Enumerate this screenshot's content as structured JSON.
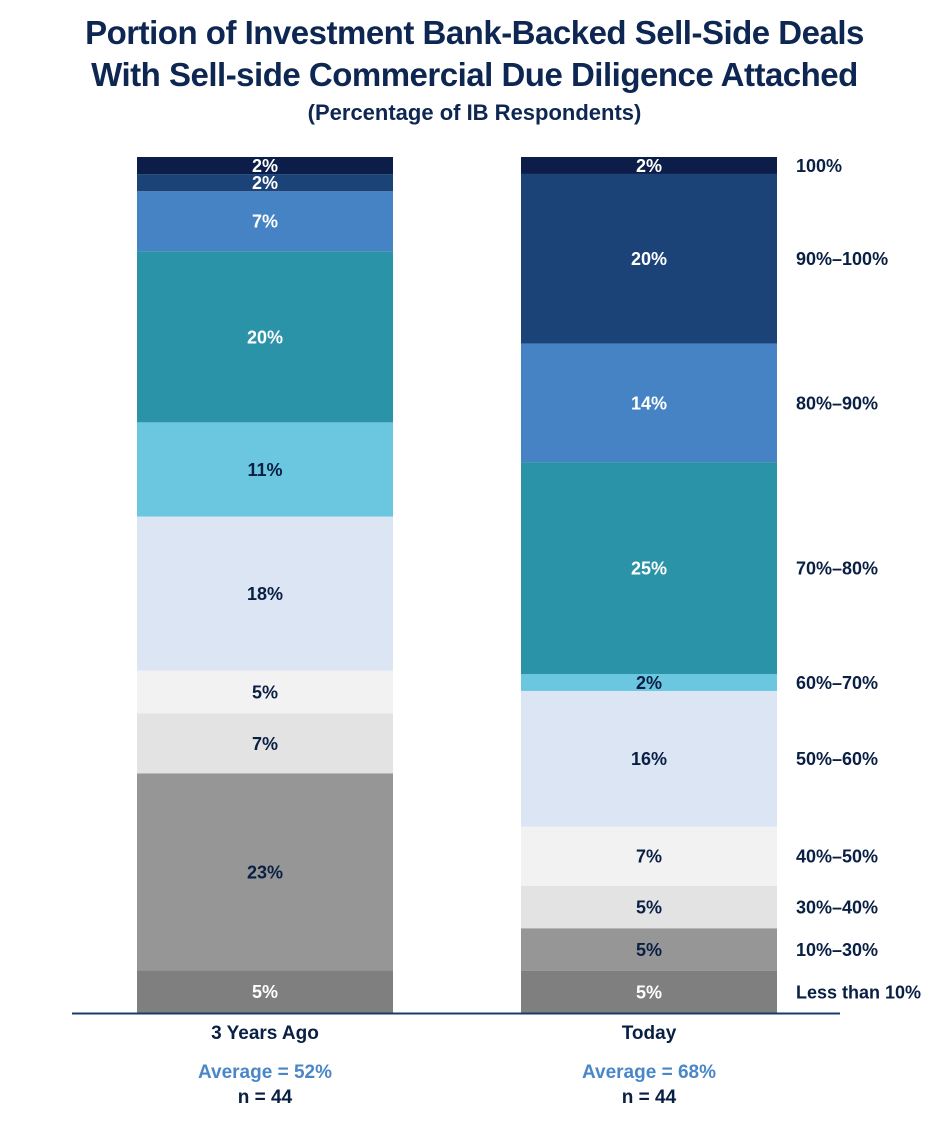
{
  "title": {
    "line1": "Portion of Investment Bank-Backed Sell-Side Deals",
    "line2": "With Sell-side Commercial Due Diligence Attached",
    "subtitle": "(Percentage of IB Respondents)"
  },
  "chart_data": {
    "type": "bar",
    "stacked": true,
    "title": "Portion of Investment Bank-Backed Sell-Side Deals With Sell-side Commercial Due Diligence Attached",
    "subtitle": "(Percentage of IB Respondents)",
    "categories": [
      "3 Years Ago",
      "Today"
    ],
    "legend_placement": "right",
    "grid": false,
    "series": [
      {
        "name": "Less than 10%",
        "color": "#7f7f7f",
        "label_color": "#ffffff",
        "values": [
          5,
          5
        ],
        "labels": [
          "5%",
          "5%"
        ]
      },
      {
        "name": "10%–30%",
        "color": "#969696",
        "label_color": "#0a1f44",
        "values": [
          23,
          5
        ],
        "labels": [
          "23%",
          "5%"
        ]
      },
      {
        "name": "30%–40%",
        "color": "#e3e3e3",
        "label_color": "#0a1f44",
        "values": [
          7,
          5
        ],
        "labels": [
          "7%",
          "5%"
        ]
      },
      {
        "name": "40%–50%",
        "color": "#f2f2f2",
        "label_color": "#0a1f44",
        "values": [
          5,
          7
        ],
        "labels": [
          "5%",
          "7%"
        ]
      },
      {
        "name": "50%–60%",
        "color": "#dbe5f3",
        "label_color": "#0a1f44",
        "values": [
          18,
          16
        ],
        "labels": [
          "18%",
          "16%"
        ]
      },
      {
        "name": "60%–70%",
        "color": "#6bc6e0",
        "label_color": "#0a1f44",
        "values": [
          11,
          2
        ],
        "labels": [
          "11%",
          "2%"
        ]
      },
      {
        "name": "70%–80%",
        "color": "#2b93a8",
        "label_color": "#ffffff",
        "values": [
          20,
          25
        ],
        "labels": [
          "20%",
          "25%"
        ]
      },
      {
        "name": "80%–90%",
        "color": "#4583c4",
        "label_color": "#ffffff",
        "values": [
          7,
          14
        ],
        "labels": [
          "7%",
          "14%"
        ]
      },
      {
        "name": "90%–100%",
        "color": "#1b4378",
        "label_color": "#ffffff",
        "values": [
          2,
          20
        ],
        "labels": [
          "2%",
          "20%"
        ]
      },
      {
        "name": "100%",
        "color": "#0b1d48",
        "label_color": "#ffffff",
        "values": [
          2,
          2
        ],
        "labels": [
          "2%",
          "2%"
        ]
      }
    ],
    "footer": [
      {
        "average": "Average = 52%",
        "n": "n = 44"
      },
      {
        "average": "Average = 68%",
        "n": "n = 44"
      }
    ]
  }
}
